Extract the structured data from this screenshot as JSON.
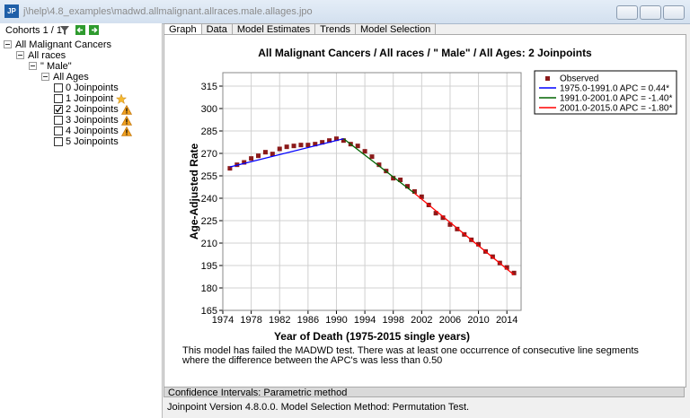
{
  "window": {
    "icon": "JP",
    "title": "j\\help\\4.8_examples\\madwd.allmalignant.allraces.male.allages.jpo"
  },
  "sidebar": {
    "cohorts": "Cohorts 1 / 1",
    "tree": [
      {
        "label": "All Malignant Cancers",
        "depth": 0
      },
      {
        "label": "All races",
        "depth": 1
      },
      {
        "label": "\"  Male\"",
        "depth": 2
      },
      {
        "label": "All Ages",
        "depth": 3
      },
      {
        "label": "0 Joinpoints",
        "depth": 4,
        "checked": false
      },
      {
        "label": "1 Joinpoint",
        "depth": 4,
        "checked": false,
        "icon": "star"
      },
      {
        "label": "2 Joinpoints",
        "depth": 4,
        "checked": true,
        "icon": "warning"
      },
      {
        "label": "3 Joinpoints",
        "depth": 4,
        "checked": false,
        "icon": "warning"
      },
      {
        "label": "4 Joinpoints",
        "depth": 4,
        "checked": false,
        "icon": "warning"
      },
      {
        "label": "5 Joinpoints",
        "depth": 4,
        "checked": false
      }
    ]
  },
  "tabs": [
    "Graph",
    "Data",
    "Model Estimates",
    "Trends",
    "Model Selection"
  ],
  "chart_data": {
    "type": "line",
    "title": "All Malignant Cancers / All races / \"  Male\" / All Ages: 2 Joinpoints",
    "x_label": "Year of Death (1975-2015 single years)",
    "y_label": "Age-Adjusted Rate",
    "xlim": [
      1974,
      2016
    ],
    "ylim": [
      165,
      324
    ],
    "xticks": [
      1974,
      1978,
      1982,
      1986,
      1990,
      1994,
      1998,
      2002,
      2006,
      2010,
      2014
    ],
    "yticks": [
      165,
      180,
      195,
      210,
      225,
      240,
      255,
      270,
      285,
      300,
      315
    ],
    "grid": true,
    "legend": "top-right",
    "series": [
      {
        "name": "Observed",
        "color": "#8b1a1a",
        "mode": "markers",
        "x": [
          1975,
          1976,
          1977,
          1978,
          1979,
          1980,
          1981,
          1982,
          1983,
          1984,
          1985,
          1986,
          1987,
          1988,
          1989,
          1990,
          1991,
          1992,
          1993,
          1994,
          1995,
          1996,
          1997,
          1998,
          1999,
          2000,
          2001,
          2002,
          2003,
          2004,
          2005,
          2006,
          2007,
          2008,
          2009,
          2010,
          2011,
          2012,
          2013,
          2014,
          2015
        ],
        "values": [
          260,
          262.4,
          264,
          266.6,
          268.4,
          270.8,
          269.6,
          273,
          274.4,
          275,
          275.6,
          275.6,
          276.2,
          277.4,
          278.6,
          279.8,
          278.6,
          276.2,
          275,
          271.4,
          267.8,
          262.4,
          258.2,
          253.4,
          252.3,
          248,
          244.5,
          241,
          235.5,
          230,
          227,
          222.4,
          219.4,
          215.8,
          212.2,
          209.2,
          204.4,
          200.9,
          196.7,
          193.7,
          190
        ]
      },
      {
        "name": "1975.0-1991.0 APC =  0.44*",
        "color": "#0000ff",
        "mode": "line",
        "x": [
          1975,
          1991
        ],
        "values": [
          260.9,
          279.8
        ]
      },
      {
        "name": "1991.0-2001.0 APC = -1.40*",
        "color": "#006400",
        "mode": "line",
        "x": [
          1991,
          2001
        ],
        "values": [
          279.8,
          243.3
        ]
      },
      {
        "name": "2001.0-2015.0 APC = -1.80*",
        "color": "#ff0000",
        "mode": "line",
        "x": [
          2001,
          2015
        ],
        "values": [
          243.3,
          188.8
        ]
      }
    ]
  },
  "message": "This model has failed the MADWD test.  There was at least one occurrence of consecutive line segments where the difference between the APC's was less than 0.50",
  "confidence": "Confidence Intervals:  Parametric method",
  "footer": "Joinpoint Version 4.8.0.0.   Model Selection Method: Permutation Test."
}
